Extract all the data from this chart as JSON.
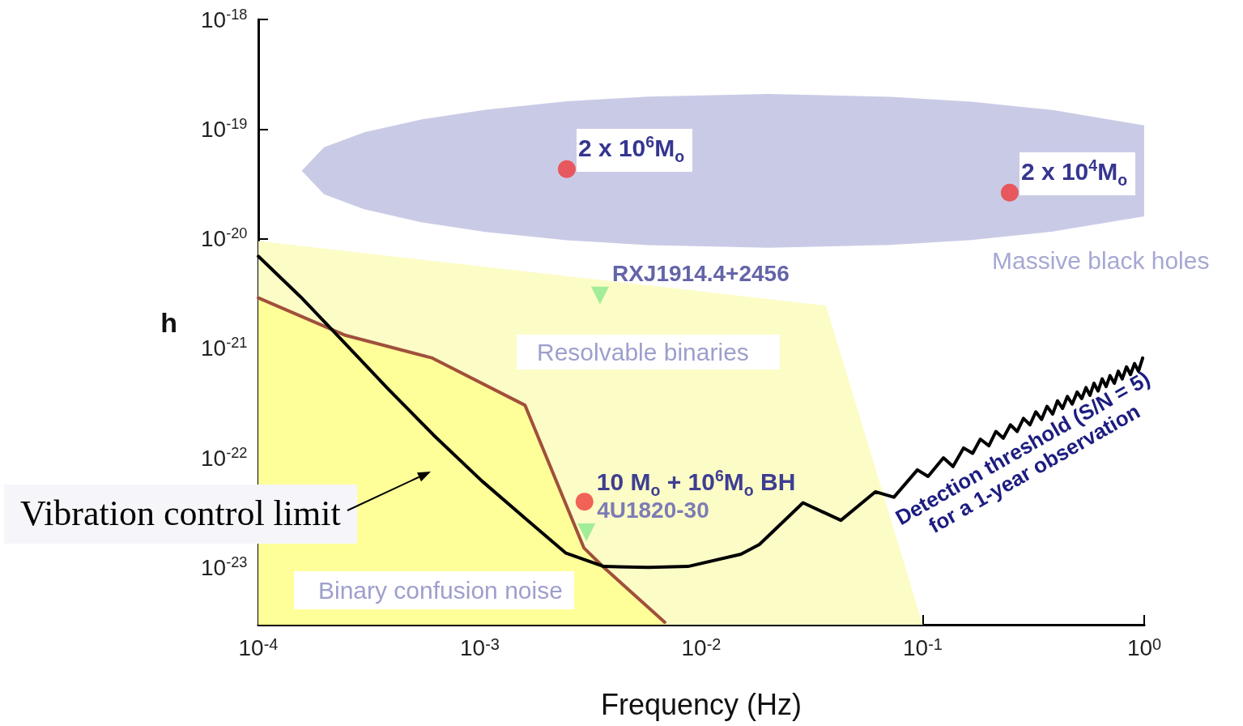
{
  "chart_data": {
    "type": "line",
    "xlabel": "Frequency (Hz)",
    "ylabel": "h",
    "log": "xy",
    "xlim": [
      0.0001,
      1
    ],
    "ylim": [
      3e-24,
      1e-18
    ],
    "xticks": [
      {
        "value": 0.0001,
        "label": "10$^{-4}$"
      },
      {
        "value": 0.001,
        "label": "10$^{-3}$"
      },
      {
        "value": 0.01,
        "label": "10$^{-2}$"
      },
      {
        "value": 0.1,
        "label": "10$^{-1}$"
      },
      {
        "value": 1,
        "label": "10$^{0}$"
      }
    ],
    "yticks": [
      {
        "value": 1e-23,
        "label": "10$^{-23}$"
      },
      {
        "value": 1e-22,
        "label": "10$^{-22}$"
      },
      {
        "value": 1e-21,
        "label": "10$^{-21}$"
      },
      {
        "value": 1e-20,
        "label": "10$^{-20}$"
      },
      {
        "value": 1e-19,
        "label": "10$^{-19}$"
      },
      {
        "value": 1e-18,
        "label": "10$^{-18}$"
      }
    ],
    "series": [
      {
        "type": "area",
        "color": "#fcfcc6",
        "x": [
          0.0001,
          0.0366,
          0.1
        ],
        "values": [
          9.5e-21,
          2.45e-21,
          3e-24
        ]
      },
      {
        "color": "#a0503c",
        "x": [
          0.0001,
          0.000245,
          0.000611,
          0.0016,
          0.00295,
          0.00363,
          0.00684
        ],
        "values": [
          2.88e-21,
          1.32e-21,
          8.13e-22,
          3.02e-22,
          1.51e-23,
          1e-23,
          3.16e-24
        ]
      },
      {
        "type": "area",
        "color": "#c9cbe6",
        "values": [
          null,
          null,
          null,
          null,
          null,
          null,
          null,
          null,
          null,
          null,
          null,
          null
        ],
        "x": [
          0.000157,
          0.000198,
          0.000301,
          0.000543,
          0.00106,
          0.00247,
          0.00574,
          0.02,
          0.0718,
          0.166,
          0.386,
          1
        ],
        "lower": [
          4.16e-20,
          2.54e-20,
          1.85e-20,
          1.41e-20,
          1.15e-20,
          9.68e-21,
          8.73e-21,
          8.26e-21,
          8.75e-21,
          9.72e-21,
          1.16e-20,
          1.6e-20
        ],
        "upper": [
          4.16e-20,
          6.81e-20,
          9.33e-20,
          1.22e-19,
          1.5e-19,
          1.79e-19,
          1.98e-19,
          2.09e-19,
          1.97e-19,
          1.78e-19,
          1.49e-19,
          1.08e-19
        ]
      },
      {
        "type": "area",
        "color": "#ffff99",
        "x": [
          0.0001,
          0.000245,
          0.000611,
          0.0016,
          0.00295,
          0.00363,
          0.00684
        ],
        "values": [
          null,
          null,
          null,
          null,
          null,
          null,
          null
        ],
        "lower": [
          3e-24,
          3e-24,
          3e-24,
          3e-24,
          3e-24,
          3e-24,
          3e-24
        ],
        "upper": [
          2.88e-21,
          1.32e-21,
          8.13e-22,
          3.02e-22,
          1.51e-23,
          1e-23,
          3.16e-24
        ]
      },
      {
        "color": "#000000",
        "x": [
          0.0001,
          0.000155,
          0.000245,
          0.000385,
          0.000617,
          0.00102,
          0.00162,
          0.00245,
          0.00363,
          0.00575,
          0.00871,
          0.0151,
          0.0183,
          0.0288,
          0.0427,
          0.0611,
          0.0741,
          0.0946,
          0.1057,
          0.124,
          0.137,
          0.153,
          0.168,
          0.182,
          0.199,
          0.214,
          0.231,
          0.249,
          0.267,
          0.285,
          0.305,
          0.324,
          0.344,
          0.364,
          0.386,
          0.406,
          0.428,
          0.45,
          0.473,
          0.498,
          0.522,
          0.546,
          0.569,
          0.593,
          0.619,
          0.646,
          0.673,
          0.701,
          0.733,
          0.764,
          0.796,
          0.832,
          0.867,
          0.904,
          0.942,
          0.984
        ],
        "values": [
          6.9e-21,
          2.95e-21,
          1.12e-21,
          4.27e-22,
          1.62e-22,
          6.17e-23,
          2.75e-23,
          1.35e-23,
          1.02e-23,
          1e-23,
          1.02e-23,
          1.32e-23,
          1.62e-23,
          3.89e-23,
          2.69e-23,
          4.9e-23,
          4.37e-23,
          7.76e-23,
          6.76e-23,
          1e-22,
          8.32e-23,
          1.23e-22,
          1.1e-22,
          1.48e-22,
          1.29e-22,
          1.74e-22,
          1.51e-22,
          2e-22,
          1.74e-22,
          2.29e-22,
          2e-22,
          2.63e-22,
          2.24e-22,
          2.95e-22,
          2.51e-22,
          3.31e-22,
          2.82e-22,
          3.63e-22,
          3.09e-22,
          3.98e-22,
          3.47e-22,
          4.37e-22,
          3.72e-22,
          4.79e-22,
          4.07e-22,
          5.25e-22,
          4.47e-22,
          5.62e-22,
          4.79e-22,
          6.17e-22,
          5.25e-22,
          6.76e-22,
          5.75e-22,
          7.24e-22,
          6.17e-22,
          8.13e-22
        ]
      },
      {
        "type": "scatter",
        "marker": "circle",
        "color": "#ee3b3b",
        "x": [
          0.00247,
          0.247,
          0.00297
        ],
        "values": [
          4.3e-20,
          2.63e-20,
          3.98e-23
        ]
      },
      {
        "type": "scatter",
        "marker": "triangle",
        "color": "#8be88b",
        "x": [
          0.00349,
          0.00303
        ],
        "values": [
          3.03e-21,
          2.09e-23
        ]
      }
    ],
    "annotations": [
      {
        "text": "2 x 10$^{6}$M$_{o}$",
        "x": 0.00247,
        "y": 4.3e-20
      },
      {
        "text": "2 x 10$^{4}$M$_{o}$",
        "x": 0.247,
        "y": 2.63e-20
      },
      {
        "text": "RXJ1914.4+2456",
        "x": 0.00349,
        "y": 3.03e-21
      },
      {
        "text": "10 M$_{o}$ + 10$^{6}$M$_{o}$ BH",
        "x": 0.00297,
        "y": 3.98e-23
      },
      {
        "text": "4U1820-30",
        "x": 0.00303,
        "y": 2.09e-23
      },
      "Massive black holes",
      "Resolvable binaries",
      "Binary confusion noise",
      "Detection threshold (S/N = 5)\nfor a 1-year observation",
      "Vibration control limit"
    ]
  }
}
